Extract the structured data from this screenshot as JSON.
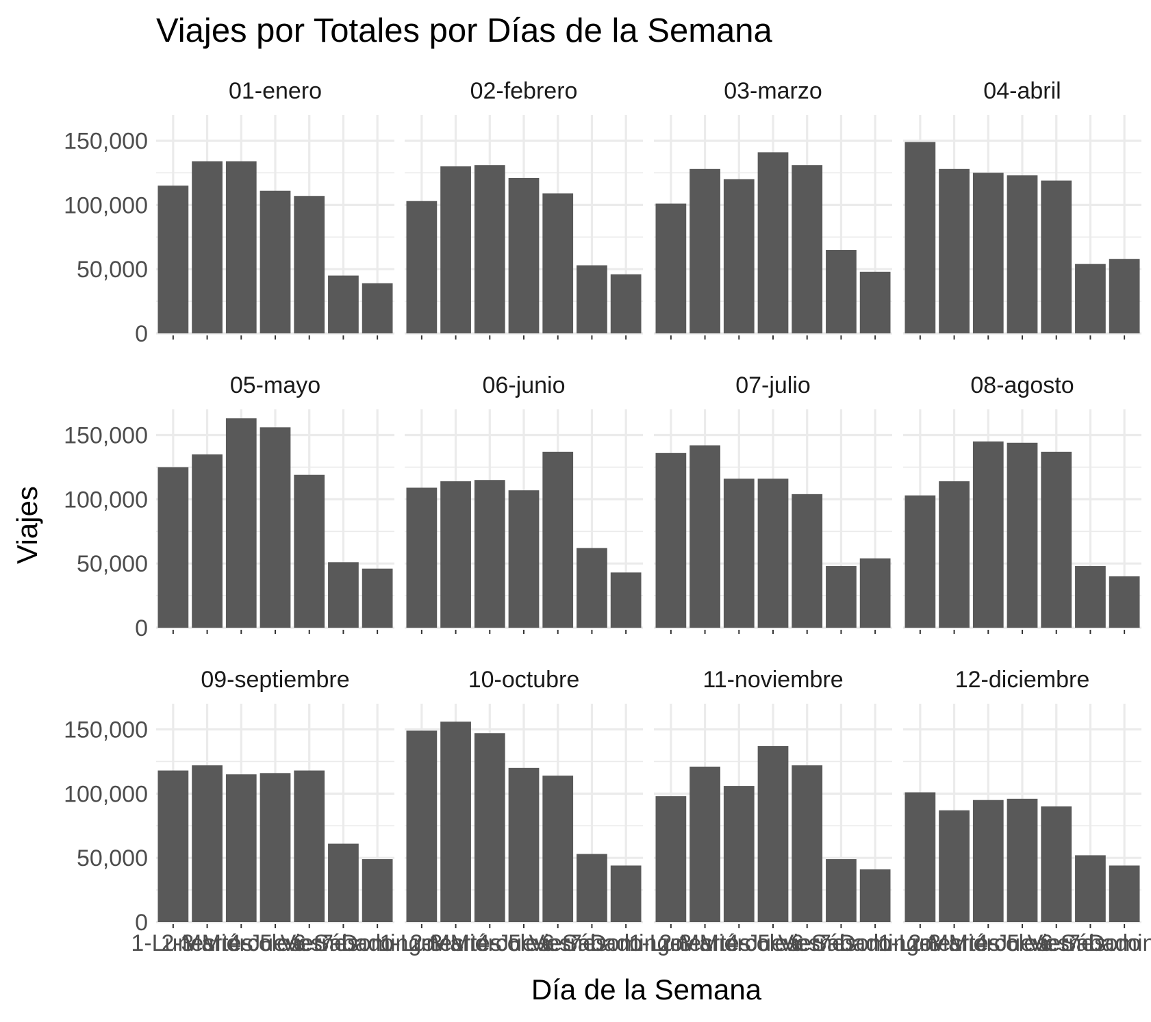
{
  "chart_data": {
    "type": "bar",
    "title": "Viajes por Totales por Días de la Semana",
    "xlabel": "Día de la Semana",
    "ylabel": "Viajes",
    "ylim": [
      0,
      170000
    ],
    "yticks": [
      0,
      50000,
      100000,
      150000
    ],
    "ytick_labels": [
      "0",
      "50,000",
      "100,000",
      "150,000"
    ],
    "grid": true,
    "bar_color": "#595959",
    "grid_color": "#ebebeb",
    "categories": [
      "1-Lunes",
      "2-Martes",
      "3-Miércoles",
      "4-Jueves",
      "5-Viernes",
      "6-Sábado",
      "7-Domingo"
    ],
    "facets": [
      {
        "name": "01-enero",
        "values": [
          115000,
          134000,
          134000,
          111000,
          107000,
          45000,
          39000
        ]
      },
      {
        "name": "02-febrero",
        "values": [
          103000,
          130000,
          131000,
          121000,
          109000,
          53000,
          46000
        ]
      },
      {
        "name": "03-marzo",
        "values": [
          101000,
          128000,
          120000,
          141000,
          131000,
          65000,
          48000
        ]
      },
      {
        "name": "04-abril",
        "values": [
          149000,
          128000,
          125000,
          123000,
          119000,
          54000,
          58000
        ]
      },
      {
        "name": "05-mayo",
        "values": [
          125000,
          135000,
          163000,
          156000,
          119000,
          51000,
          46000
        ]
      },
      {
        "name": "06-junio",
        "values": [
          109000,
          114000,
          115000,
          107000,
          137000,
          62000,
          43000
        ]
      },
      {
        "name": "07-julio",
        "values": [
          136000,
          142000,
          116000,
          116000,
          104000,
          48000,
          54000
        ]
      },
      {
        "name": "08-agosto",
        "values": [
          103000,
          114000,
          145000,
          144000,
          137000,
          48000,
          40000
        ]
      },
      {
        "name": "09-septiembre",
        "values": [
          118000,
          122000,
          115000,
          116000,
          118000,
          61000,
          49000
        ]
      },
      {
        "name": "10-octubre",
        "values": [
          149000,
          156000,
          147000,
          120000,
          114000,
          53000,
          44000
        ]
      },
      {
        "name": "11-noviembre",
        "values": [
          98000,
          121000,
          106000,
          137000,
          122000,
          49000,
          41000
        ]
      },
      {
        "name": "12-diciembre",
        "values": [
          101000,
          87000,
          95000,
          96000,
          90000,
          52000,
          44000
        ]
      }
    ]
  }
}
